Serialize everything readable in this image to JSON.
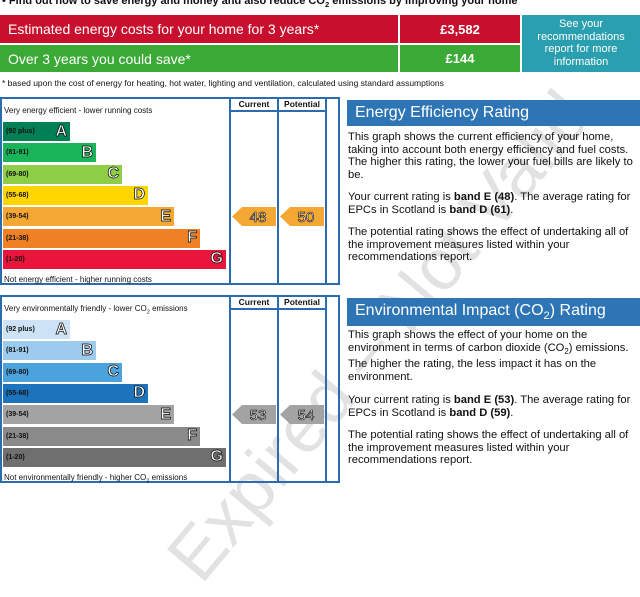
{
  "top_note": [
    "Find out how to save energy and money and also reduce CO",
    "2",
    " emissions by improving your home"
  ],
  "costs": {
    "rows": [
      {
        "label": "Estimated energy costs for your home for 3 years*",
        "value": "£3,582"
      },
      {
        "label": "Over 3 years you could save*",
        "value": "£144"
      }
    ],
    "link": "See your recommendations report for more information"
  },
  "footnote": "* based upon the cost of energy for heating, hot water, lighting and ventilation, calculated using standard assumptions",
  "energy_chart": {
    "top_label": [
      "Very energy efficient - lower running costs"
    ],
    "bottom_label": [
      "Not energy efficient - higher running costs"
    ],
    "columns": [
      "Current",
      "Potential"
    ],
    "bands": [
      {
        "range": "(92 plus)",
        "letter": "A",
        "color": "#008054"
      },
      {
        "range": "(81-91)",
        "letter": "B",
        "color": "#19b459"
      },
      {
        "range": "(69-80)",
        "letter": "C",
        "color": "#8dce46"
      },
      {
        "range": "(55-68)",
        "letter": "D",
        "color": "#ffd500"
      },
      {
        "range": "(39-54)",
        "letter": "E",
        "color": "#f5a733"
      },
      {
        "range": "(21-38)",
        "letter": "F",
        "color": "#ef8023"
      },
      {
        "range": "(1-20)",
        "letter": "G",
        "color": "#e9153b"
      }
    ],
    "current": {
      "value": 48,
      "band": "E"
    },
    "potential": {
      "value": 50,
      "band": "E"
    }
  },
  "energy_text": {
    "heading": [
      "Energy Efficiency Rating"
    ],
    "paragraphs": [
      [
        "This graph shows the current efficiency of your home, taking into account both energy efficiency and fuel costs. The higher this rating, the lower your fuel bills are likely to be."
      ],
      [
        "Your current rating is ",
        "band E (48)",
        ". The average rating for EPCs in Scotland is ",
        "band D (61)",
        "."
      ],
      [
        "The potential rating shows the effect of undertaking all of the improvement measures listed within your recommendations report."
      ]
    ]
  },
  "env_chart": {
    "top_label": [
      "Very environmentally friendly - lower CO",
      "2",
      " emissions"
    ],
    "bottom_label": [
      "Not environmentally friendly - higher CO",
      "2",
      " emissions"
    ],
    "columns": [
      "Current",
      "Potential"
    ],
    "bands": [
      {
        "range": "(92 plus)",
        "letter": "A",
        "color": "#cde3f5"
      },
      {
        "range": "(81-91)",
        "letter": "B",
        "color": "#9ccbee"
      },
      {
        "range": "(69-80)",
        "letter": "C",
        "color": "#4ba3dd"
      },
      {
        "range": "(55-68)",
        "letter": "D",
        "color": "#1d74bc"
      },
      {
        "range": "(39-54)",
        "letter": "E",
        "color": "#a3a3a3"
      },
      {
        "range": "(21-38)",
        "letter": "F",
        "color": "#8a8a8a"
      },
      {
        "range": "(1-20)",
        "letter": "G",
        "color": "#6f6f6f"
      }
    ],
    "current": {
      "value": 53,
      "band": "E"
    },
    "potential": {
      "value": 54,
      "band": "E"
    }
  },
  "env_text": {
    "heading": [
      "Environmental Impact (CO",
      "2",
      ") Rating"
    ],
    "paragraphs": [
      [
        "This graph shows the effect of your home on the environment in terms of carbon dioxide (CO",
        "2",
        ") emissions. The higher the rating, the less impact it has on the environment."
      ],
      [
        "Your current rating is ",
        "band E (53)",
        ". The average rating for EPCs in Scotland is ",
        "band D (59)",
        "."
      ],
      [
        "The potential rating shows the effect of undertaking all of the improvement measures listed within your recommendations report."
      ]
    ]
  },
  "watermark": "Expired – Not Valid"
}
